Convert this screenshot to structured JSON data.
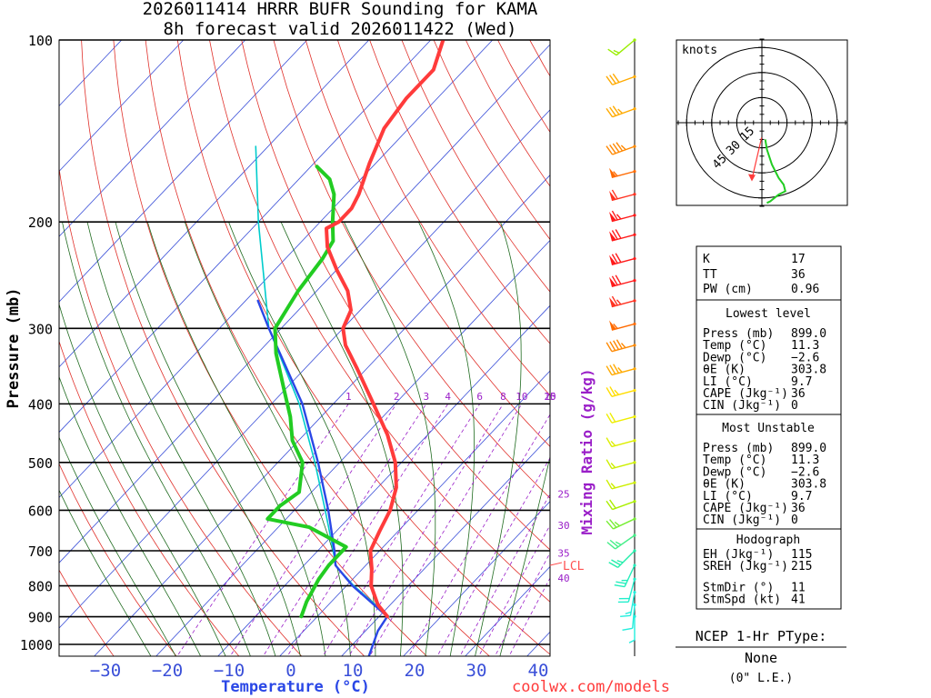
{
  "title_line1": "2026011414 HRRR BUFR Sounding for KAMA",
  "title_line2": "8h forecast valid 2026011422 (Wed)",
  "credit": "coolwx.com/models",
  "colors": {
    "temperature": "#ff3b3b",
    "dewpoint": "#22cc22",
    "parcel": "#2a47e6",
    "virtual": "#00cccc",
    "isotherm": "#3a4fd8",
    "dry_adiabat": "#e0302a",
    "moist_adiabat": "#1f6b1f",
    "mixing_ratio": "#9a1fc8",
    "lcl": "#ff5050"
  },
  "chart_data": {
    "type": "skew-t",
    "title": "2026011414 HRRR BUFR Sounding for KAMA",
    "subtitle": "8h forecast valid 2026011422 (Wed)",
    "xlabel": "Temperature (°C)",
    "ylabel": "Pressure (mb)",
    "secondary_label": "Mixing Ratio (g/kg)",
    "xlim": [
      -40,
      42
    ],
    "ylim": [
      1050,
      100
    ],
    "pressure_ticks": [
      100,
      200,
      300,
      400,
      500,
      600,
      700,
      800,
      900,
      1000
    ],
    "pressure_tick_labels": [
      "100",
      "200",
      "300",
      "400",
      "500",
      "600",
      "700",
      "800",
      "900",
      "1000"
    ],
    "temperature_ticks": [
      -30,
      -20,
      -10,
      0,
      10,
      20,
      30,
      40
    ],
    "temperature_tick_labels": [
      "−30",
      "−20",
      "−10",
      "0",
      "10",
      "20",
      "30",
      "40"
    ],
    "mixing_ratio_lines": [
      1,
      2,
      3,
      4,
      6,
      8,
      10,
      15,
      20,
      25,
      30,
      35,
      40
    ],
    "mixing_ratio_labels_top": [
      "1",
      "2",
      "3",
      "4",
      "6",
      "8",
      "10",
      "15",
      "20"
    ],
    "mixing_ratio_labels_side": [
      "25",
      "30",
      "35",
      "40"
    ],
    "lcl_label": "LCL",
    "temperature_profile": [
      {
        "p": 899,
        "t": 11.3
      },
      {
        "p": 860,
        "t": 8.0
      },
      {
        "p": 800,
        "t": 4.0
      },
      {
        "p": 750,
        "t": 1.5
      },
      {
        "p": 700,
        "t": -1.5
      },
      {
        "p": 650,
        "t": -3.0
      },
      {
        "p": 600,
        "t": -4.5
      },
      {
        "p": 550,
        "t": -7.0
      },
      {
        "p": 500,
        "t": -11.0
      },
      {
        "p": 450,
        "t": -16.5
      },
      {
        "p": 400,
        "t": -23.5
      },
      {
        "p": 350,
        "t": -31.5
      },
      {
        "p": 320,
        "t": -37.0
      },
      {
        "p": 300,
        "t": -40.0
      },
      {
        "p": 280,
        "t": -41.5
      },
      {
        "p": 260,
        "t": -45.0
      },
      {
        "p": 240,
        "t": -50.0
      },
      {
        "p": 220,
        "t": -55.0
      },
      {
        "p": 205,
        "t": -58.0
      },
      {
        "p": 200,
        "t": -57.0
      },
      {
        "p": 190,
        "t": -57.0
      },
      {
        "p": 180,
        "t": -58.0
      },
      {
        "p": 160,
        "t": -61.0
      },
      {
        "p": 140,
        "t": -64.0
      },
      {
        "p": 125,
        "t": -65.0
      },
      {
        "p": 112,
        "t": -65.0
      },
      {
        "p": 100,
        "t": -68.0
      }
    ],
    "dewpoint_profile": [
      {
        "p": 899,
        "t": -2.6
      },
      {
        "p": 850,
        "t": -4.0
      },
      {
        "p": 780,
        "t": -5.5
      },
      {
        "p": 740,
        "t": -6.0
      },
      {
        "p": 690,
        "t": -6.0
      },
      {
        "p": 640,
        "t": -15.0
      },
      {
        "p": 620,
        "t": -23.0
      },
      {
        "p": 590,
        "t": -23.0
      },
      {
        "p": 560,
        "t": -22.0
      },
      {
        "p": 500,
        "t": -26.0
      },
      {
        "p": 460,
        "t": -31.0
      },
      {
        "p": 420,
        "t": -35.0
      },
      {
        "p": 380,
        "t": -40.0
      },
      {
        "p": 330,
        "t": -47.0
      },
      {
        "p": 300,
        "t": -51.0
      },
      {
        "p": 260,
        "t": -53.0
      },
      {
        "p": 230,
        "t": -54.0
      },
      {
        "p": 215,
        "t": -55.0
      },
      {
        "p": 200,
        "t": -58.0
      },
      {
        "p": 180,
        "t": -62.0
      },
      {
        "p": 170,
        "t": -65.0
      },
      {
        "p": 162,
        "t": -69.0
      }
    ],
    "parcel_profile": [
      {
        "p": 1050,
        "t": 14.5
      },
      {
        "p": 950,
        "t": 12.0
      },
      {
        "p": 899,
        "t": 11.3
      },
      {
        "p": 800,
        "t": 1.0
      },
      {
        "p": 740,
        "t": -4.9
      },
      {
        "p": 700,
        "t": -7.3
      },
      {
        "p": 600,
        "t": -14.5
      },
      {
        "p": 500,
        "t": -23.5
      },
      {
        "p": 400,
        "t": -35.0
      },
      {
        "p": 300,
        "t": -52.0
      },
      {
        "p": 270,
        "t": -58.0
      }
    ],
    "virtual_temperature_profile": [
      {
        "p": 899,
        "t": 11.6
      },
      {
        "p": 800,
        "t": 1.2
      },
      {
        "p": 740,
        "t": -4.9
      },
      {
        "p": 700,
        "t": -7.5
      },
      {
        "p": 600,
        "t": -15.0
      },
      {
        "p": 500,
        "t": -24.0
      },
      {
        "p": 400,
        "t": -35.5
      },
      {
        "p": 300,
        "t": -52.0
      },
      {
        "p": 200,
        "t": -70.0
      },
      {
        "p": 150,
        "t": -82.0
      }
    ],
    "lcl_pressure": 740,
    "hodograph": {
      "label": "knots",
      "ring_labels": [
        "15",
        "30",
        "45"
      ],
      "rings_kt": [
        15,
        30,
        45
      ],
      "max_kt": 50,
      "wind_uv": [
        [
          2,
          -10
        ],
        [
          3,
          -16
        ],
        [
          6,
          -25
        ],
        [
          10,
          -33
        ],
        [
          13,
          -37
        ],
        [
          14,
          -41
        ],
        [
          10,
          -43
        ],
        [
          5,
          -47
        ],
        [
          3,
          -48
        ]
      ],
      "storm_motion_uv": [
        -6,
        -34
      ]
    },
    "wind_barbs": [
      {
        "p": 100,
        "dir": 230,
        "spd": 15,
        "color": "#99ee00"
      },
      {
        "p": 115,
        "dir": 250,
        "spd": 30,
        "color": "#ffaa00"
      },
      {
        "p": 130,
        "dir": 250,
        "spd": 35,
        "color": "#ffaa00"
      },
      {
        "p": 150,
        "dir": 250,
        "spd": 45,
        "color": "#ff8800"
      },
      {
        "p": 165,
        "dir": 255,
        "spd": 55,
        "color": "#ff6a00"
      },
      {
        "p": 180,
        "dir": 255,
        "spd": 60,
        "color": "#ff3322"
      },
      {
        "p": 195,
        "dir": 255,
        "spd": 65,
        "color": "#ff1a1a"
      },
      {
        "p": 210,
        "dir": 255,
        "spd": 70,
        "color": "#ff1a1a"
      },
      {
        "p": 230,
        "dir": 255,
        "spd": 70,
        "color": "#ff1a1a"
      },
      {
        "p": 250,
        "dir": 255,
        "spd": 70,
        "color": "#ff1a1a"
      },
      {
        "p": 270,
        "dir": 255,
        "spd": 65,
        "color": "#ff3322"
      },
      {
        "p": 295,
        "dir": 255,
        "spd": 55,
        "color": "#ff6a00"
      },
      {
        "p": 320,
        "dir": 255,
        "spd": 45,
        "color": "#ff8800"
      },
      {
        "p": 350,
        "dir": 255,
        "spd": 35,
        "color": "#ffaa00"
      },
      {
        "p": 380,
        "dir": 255,
        "spd": 25,
        "color": "#ffdd00"
      },
      {
        "p": 420,
        "dir": 255,
        "spd": 20,
        "color": "#eeee00"
      },
      {
        "p": 460,
        "dir": 255,
        "spd": 15,
        "color": "#ddee00"
      },
      {
        "p": 500,
        "dir": 255,
        "spd": 15,
        "color": "#ccee00"
      },
      {
        "p": 540,
        "dir": 255,
        "spd": 15,
        "color": "#ccee00"
      },
      {
        "p": 580,
        "dir": 250,
        "spd": 20,
        "color": "#aaee00"
      },
      {
        "p": 620,
        "dir": 245,
        "spd": 25,
        "color": "#77ee33"
      },
      {
        "p": 660,
        "dir": 235,
        "spd": 25,
        "color": "#44ee88"
      },
      {
        "p": 700,
        "dir": 225,
        "spd": 25,
        "color": "#22eeaa"
      },
      {
        "p": 740,
        "dir": 205,
        "spd": 25,
        "color": "#22eebb"
      },
      {
        "p": 780,
        "dir": 195,
        "spd": 20,
        "color": "#22eecc"
      },
      {
        "p": 820,
        "dir": 190,
        "spd": 15,
        "color": "#22eedd"
      },
      {
        "p": 860,
        "dir": 185,
        "spd": 10,
        "color": "#22eedd"
      },
      {
        "p": 899,
        "dir": 180,
        "spd": 5,
        "color": "#22eedd"
      }
    ]
  },
  "indices": {
    "k_label": "K",
    "k_value": "17",
    "tt_label": "TT",
    "tt_value": "36",
    "pw_label": "PW (cm)",
    "pw_value": "0.96",
    "lowest_title": "Lowest level",
    "lowest": [
      {
        "label": "Press (mb)",
        "value": "899.0"
      },
      {
        "label": "Temp (°C)",
        "value": "11.3"
      },
      {
        "label": "Dewp (°C)",
        "value": "−2.6"
      },
      {
        "label": "θE (K)",
        "value": "303.8"
      },
      {
        "label": "LI (°C)",
        "value": "9.7"
      },
      {
        "label": "CAPE (Jkg⁻¹)",
        "value": "36"
      },
      {
        "label": "CIN (Jkg⁻¹)",
        "value": "0"
      }
    ],
    "unstable_title": "Most Unstable",
    "unstable": [
      {
        "label": "Press (mb)",
        "value": "899.0"
      },
      {
        "label": "Temp (°C)",
        "value": "11.3"
      },
      {
        "label": "Dewp (°C)",
        "value": "−2.6"
      },
      {
        "label": "θE (K)",
        "value": "303.8"
      },
      {
        "label": "LI (°C)",
        "value": "9.7"
      },
      {
        "label": "CAPE (Jkg⁻¹)",
        "value": "36"
      },
      {
        "label": "CIN (Jkg⁻¹)",
        "value": "0"
      }
    ],
    "hodo_title": "Hodograph",
    "hodo": [
      {
        "label": "EH (Jkg⁻¹)",
        "value": "115"
      },
      {
        "label": "SREH (Jkg⁻¹)",
        "value": "215"
      },
      {
        "label": "StmDir (°)",
        "value": "11"
      },
      {
        "label": "StmSpd (kt)",
        "value": "41"
      }
    ]
  },
  "ptype": {
    "title": "NCEP 1-Hr PType:",
    "value": "None",
    "amount": "(0\" L.E.)"
  }
}
